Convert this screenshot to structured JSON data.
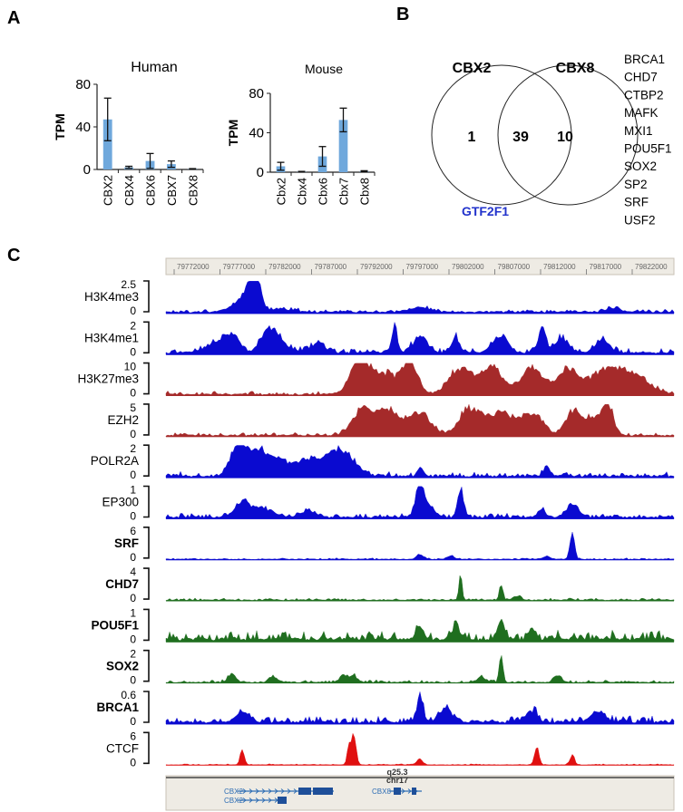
{
  "panels": {
    "a": "A",
    "b": "B",
    "c": "C"
  },
  "chart_data": [
    {
      "type": "bar",
      "title": "Human",
      "ylabel": "TPM",
      "ylim": [
        0,
        80
      ],
      "yticks": [
        "0",
        "40",
        "80"
      ],
      "categories": [
        "CBX2",
        "CBX4",
        "CBX6",
        "CBX7",
        "CBX8"
      ],
      "values": [
        47,
        2,
        8,
        5,
        0.5
      ],
      "errors": [
        20,
        1,
        7,
        3,
        0.3
      ],
      "bar_color": "#6fa8dc"
    },
    {
      "type": "bar",
      "title": "Mouse",
      "ylabel": "TPM",
      "ylim": [
        0,
        80
      ],
      "yticks": [
        "0",
        "40",
        "80"
      ],
      "categories": [
        "Cbx2",
        "Cbx4",
        "Cbx6",
        "Cbx7",
        "Cbx8"
      ],
      "values": [
        6,
        0.5,
        16,
        53,
        1
      ],
      "errors": [
        4,
        0.3,
        10,
        12,
        0.5
      ],
      "bar_color": "#6fa8dc"
    }
  ],
  "venn": {
    "left_label": "CBX2",
    "right_label": "CBX8",
    "left_only": "1",
    "overlap": "39",
    "right_only": "10",
    "left_gene": "GTF2F1",
    "left_gene_color": "#2233cc",
    "right_genes": [
      "BRCA1",
      "CHD7",
      "CTBP2",
      "MAFK",
      "MXI1",
      "POU5F1",
      "SOX2",
      "SP2",
      "SRF",
      "USF2"
    ]
  },
  "browser": {
    "coords": [
      "79772000",
      "79777000",
      "79782000",
      "79787000",
      "79792000",
      "79797000",
      "79802000",
      "79807000",
      "79812000",
      "79817000",
      "79822000"
    ],
    "band": "q25.3",
    "chrom": "chr17",
    "genes": [
      "CBX2",
      "CBX2",
      "CBX8"
    ],
    "tracks": [
      {
        "name": "H3K4me3",
        "max": "2.5",
        "min": "0",
        "bold": false,
        "color": "#0a0ad0"
      },
      {
        "name": "H3K4me1",
        "max": "2",
        "min": "0",
        "bold": false,
        "color": "#0a0ad0"
      },
      {
        "name": "H3K27me3",
        "max": "10",
        "min": "0",
        "bold": false,
        "color": "#a52a2a"
      },
      {
        "name": "EZH2",
        "max": "5",
        "min": "0",
        "bold": false,
        "color": "#a52a2a"
      },
      {
        "name": "POLR2A",
        "max": "2",
        "min": "0",
        "bold": false,
        "color": "#0a0ad0"
      },
      {
        "name": "EP300",
        "max": "1",
        "min": "0",
        "bold": false,
        "color": "#0a0ad0"
      },
      {
        "name": "SRF",
        "max": "6",
        "min": "0",
        "bold": true,
        "color": "#0a0ad0"
      },
      {
        "name": "CHD7",
        "max": "4",
        "min": "0",
        "bold": true,
        "color": "#1f6e1f"
      },
      {
        "name": "POU5F1",
        "max": "1",
        "min": "0",
        "bold": true,
        "color": "#1f6e1f"
      },
      {
        "name": "SOX2",
        "max": "2",
        "min": "0",
        "bold": true,
        "color": "#1f6e1f"
      },
      {
        "name": "BRCA1",
        "max": "0.6",
        "min": "0",
        "bold": true,
        "color": "#0a0ad0"
      },
      {
        "name": "CTCF",
        "max": "6",
        "min": "0",
        "bold": false,
        "color": "#e01010"
      }
    ]
  }
}
